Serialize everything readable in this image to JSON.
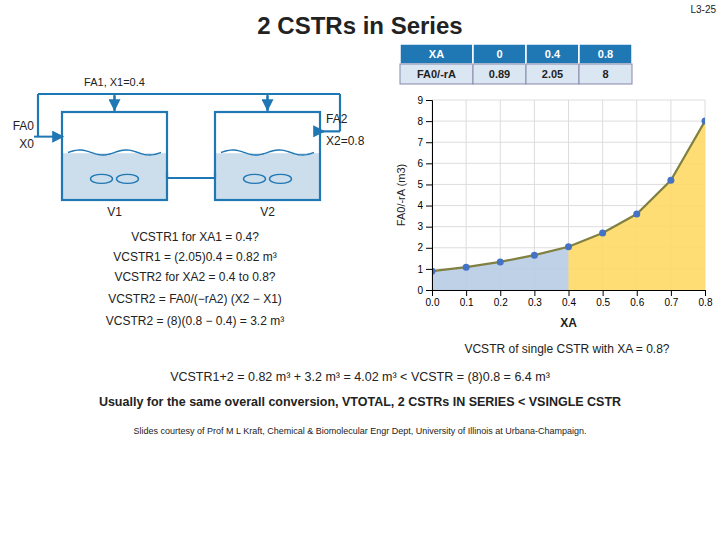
{
  "chart_data": {
    "type": "line",
    "title": "2 CSTRs in Series",
    "x": [
      0,
      0.1,
      0.2,
      0.3,
      0.4,
      0.5,
      0.6,
      0.7,
      0.8
    ],
    "series": [
      {
        "type": "area",
        "color": "#b8cce4",
        "values": [
          0.89,
          1.08,
          1.33,
          1.65,
          2.05,
          null,
          null,
          null,
          null
        ]
      },
      {
        "type": "area",
        "color": "#ffd966",
        "values": [
          null,
          null,
          null,
          null,
          2.05,
          2.7,
          3.6,
          5.2,
          8.0
        ]
      },
      {
        "type": "line",
        "color": "#808040",
        "values": [
          0.89,
          1.08,
          1.33,
          1.65,
          2.05,
          2.7,
          3.6,
          5.2,
          8.0
        ]
      },
      {
        "type": "scatter",
        "color": "#4472c4",
        "marker": "circle",
        "values": [
          0.89,
          1.08,
          1.33,
          1.65,
          2.05,
          2.7,
          3.6,
          5.2,
          8.0
        ]
      }
    ],
    "xlim": [
      0,
      0.8
    ],
    "xticks": [
      {
        "value": 0,
        "label": "0.0"
      },
      0.1,
      0.2,
      0.3,
      0.4,
      0.5,
      0.6,
      0.7,
      0.8
    ],
    "ylim": [
      0,
      9
    ],
    "yticks": [
      0,
      1,
      2,
      3,
      4,
      5,
      6,
      7,
      8,
      9
    ],
    "xlabel": "XA",
    "ylabel": "FA0/-rA (m3)",
    "grid": true,
    "annotations": [
      "L3-25",
      "FA0",
      "X0",
      "FA1, X1=0.4",
      "FA2",
      "X2=0.8",
      "V1",
      "V2",
      "VCSTR1 for XA1 = 0.4?",
      "VCSTR1 = (2.05)0.4 = 0.82 m³",
      "VCSTR2 for XA2 = 0.4 to 0.8?",
      "VCSTR2 = FA0/(−rA2) (X2 − X1)",
      "VCSTR2 = (8)(0.8 − 0.4) = 3.2 m³",
      "VCSTR of single CSTR with XA = 0.8?",
      "VCSTR1+2 = 0.82 m³ + 3.2 m³ = 4.02 m³  <  VCSTR = (8)0.8 = 6.4 m³",
      "Usually for the same overall conversion, VTOTAL, 2 CSTRs IN SERIES < VSINGLE CSTR",
      "Slides courtesy of Prof M L Kraft, Chemical & Biomolecular Engr Dept, University of Illinois at Urbana-Champaign.",
      "XA",
      "0",
      "0.4",
      "0.8",
      "FA0/-rA",
      "0.89",
      "2.05",
      "8"
    ]
  }
}
